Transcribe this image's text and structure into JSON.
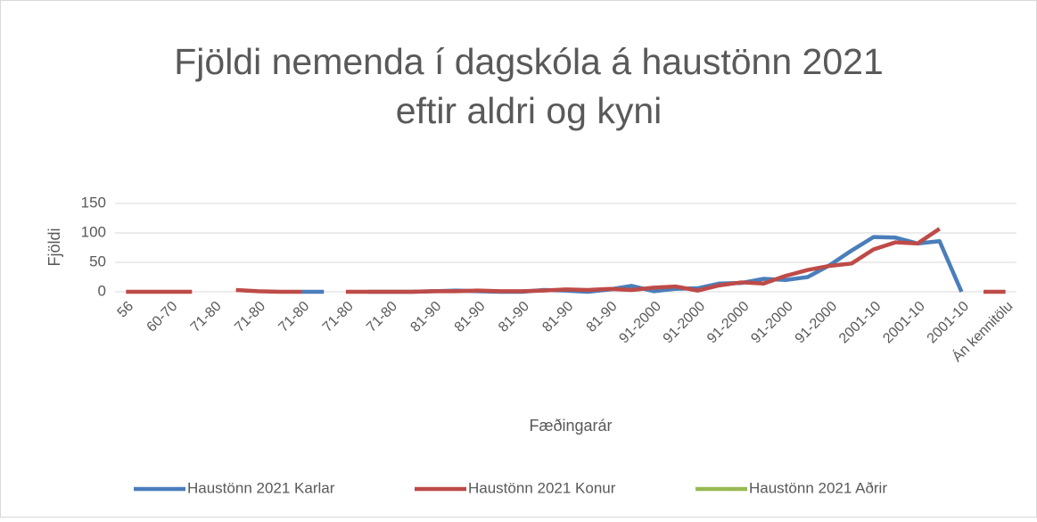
{
  "chart_data": {
    "type": "line",
    "title": [
      "Fjöldi nemenda í dagskóla á haustönn 2021",
      "eftir aldri og kyni"
    ],
    "xlabel": "Fæðingarár",
    "ylabel": "Fjöldi",
    "categories": [
      "56",
      null,
      "60-70",
      null,
      "71-80",
      null,
      "71-80",
      null,
      "71-80",
      null,
      "71-80",
      null,
      "71-80",
      null,
      "81-90",
      null,
      "81-90",
      null,
      "81-90",
      null,
      "81-90",
      null,
      "81-90",
      null,
      "91-2000",
      null,
      "91-2000",
      null,
      "91-2000",
      null,
      "91-2000",
      null,
      "91-2000",
      null,
      "2001-10",
      null,
      "2001-10",
      null,
      "2001-10",
      null,
      "Án kennitölu"
    ],
    "series": [
      {
        "name": "Haustönn 2021 Karlar",
        "color": "#4a7ebb",
        "values": [
          null,
          null,
          null,
          null,
          null,
          null,
          null,
          null,
          0,
          0,
          null,
          0,
          0,
          0,
          1,
          2,
          1,
          0,
          0,
          3,
          2,
          0,
          4,
          10,
          1,
          5,
          6,
          14,
          15,
          22,
          20,
          25,
          45,
          70,
          93,
          92,
          82,
          86,
          0,
          null,
          null
        ]
      },
      {
        "name": "Haustönn 2021 Konur",
        "color": "#be4b48",
        "values": [
          0,
          0,
          0,
          0,
          null,
          3,
          1,
          0,
          0,
          null,
          0,
          0,
          0,
          0,
          1,
          1,
          2,
          1,
          1,
          2,
          4,
          3,
          5,
          3,
          7,
          9,
          2,
          11,
          16,
          14,
          27,
          37,
          44,
          48,
          72,
          84,
          82,
          107,
          null,
          0,
          0
        ]
      },
      {
        "name": "Haustönn 2021 Aðrir",
        "color": "#98b954",
        "values": [
          null,
          null,
          null,
          null,
          null,
          null,
          null,
          null,
          null,
          null,
          null,
          null,
          null,
          null,
          null,
          null,
          null,
          null,
          null,
          null,
          null,
          null,
          null,
          null,
          null,
          null,
          null,
          null,
          null,
          null,
          null,
          null,
          null,
          null,
          null,
          null,
          null,
          null,
          null,
          null,
          null
        ]
      }
    ],
    "ylim": [
      0,
      150
    ],
    "yticks": [
      0,
      50,
      100,
      150
    ],
    "grid": true,
    "legend": "bottom"
  }
}
